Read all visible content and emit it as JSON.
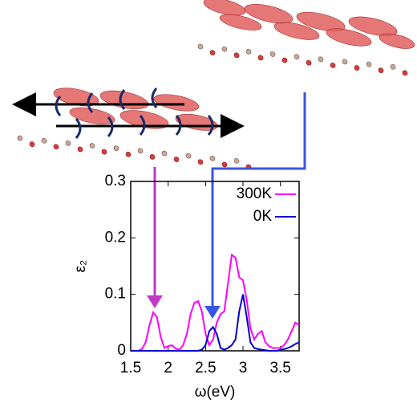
{
  "chart_data": {
    "type": "line",
    "xlabel": "ω(eV)",
    "ylabel": "ε₂",
    "x": [
      1.5,
      1.55,
      1.6,
      1.65,
      1.7,
      1.75,
      1.8,
      1.85,
      1.9,
      1.95,
      2.0,
      2.05,
      2.1,
      2.15,
      2.2,
      2.25,
      2.3,
      2.35,
      2.4,
      2.45,
      2.5,
      2.55,
      2.6,
      2.65,
      2.7,
      2.75,
      2.8,
      2.85,
      2.9,
      2.95,
      3.0,
      3.05,
      3.1,
      3.15,
      3.2,
      3.25,
      3.3,
      3.35,
      3.4,
      3.45,
      3.5,
      3.55,
      3.6,
      3.65,
      3.7,
      3.75
    ],
    "series": [
      {
        "name": "300K",
        "color": "#ff00ff",
        "values": [
          0,
          0,
          0,
          0.003,
          0.015,
          0.045,
          0.068,
          0.06,
          0.025,
          0.005,
          0.008,
          0.01,
          0.004,
          0.002,
          0.01,
          0.03,
          0.065,
          0.085,
          0.088,
          0.07,
          0.03,
          0.01,
          0.02,
          0.05,
          0.065,
          0.07,
          0.12,
          0.17,
          0.165,
          0.13,
          0.125,
          0.09,
          0.04,
          0.02,
          0.03,
          0.035,
          0.015,
          0.008,
          0.005,
          0.005,
          0.005,
          0.01,
          0.02,
          0.035,
          0.05,
          0.045
        ]
      },
      {
        "name": "0K",
        "color": "#0000cc",
        "values": [
          0,
          0,
          0,
          0,
          0,
          0,
          0,
          0,
          0,
          0,
          0,
          0,
          0,
          0,
          0,
          0,
          0,
          0,
          0,
          0.002,
          0.01,
          0.035,
          0.042,
          0.03,
          0.005,
          0.002,
          0.005,
          0.01,
          0.02,
          0.07,
          0.1,
          0.06,
          0.015,
          0.005,
          0.003,
          0.002,
          0.001,
          0,
          0,
          0,
          0.002,
          0.003,
          0.005,
          0.008,
          0.012,
          0.015
        ]
      }
    ],
    "xlim": [
      1.5,
      3.75
    ],
    "ylim": [
      0,
      0.3
    ],
    "xticks": [
      1.5,
      2,
      2.5,
      3,
      3.5
    ],
    "yticks": [
      0,
      0.1,
      0.2,
      0.3
    ],
    "legend": "upper right"
  }
}
